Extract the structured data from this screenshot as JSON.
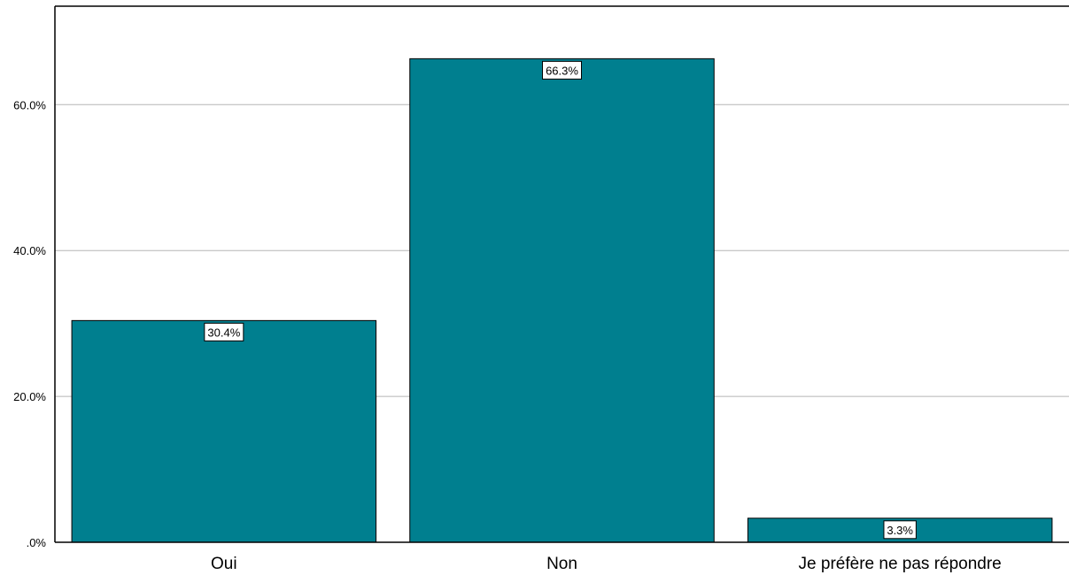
{
  "chart_data": {
    "type": "bar",
    "title": "",
    "xlabel": "",
    "ylabel": "",
    "categories": [
      "Oui",
      "Non",
      "Je préfère ne pas répondre"
    ],
    "values": [
      30.4,
      66.3,
      3.3
    ],
    "value_labels": [
      "30.4%",
      "66.3%",
      "3.3%"
    ],
    "ylim": [
      0,
      73.5
    ],
    "yticks": [
      0,
      20,
      40,
      60
    ],
    "ytick_labels": [
      ".0%",
      "20.0%",
      "40.0%",
      "60.0%"
    ],
    "grid": true,
    "legend": "none",
    "bar_color": "#007f8f",
    "bar_edge_color": "#000000"
  }
}
